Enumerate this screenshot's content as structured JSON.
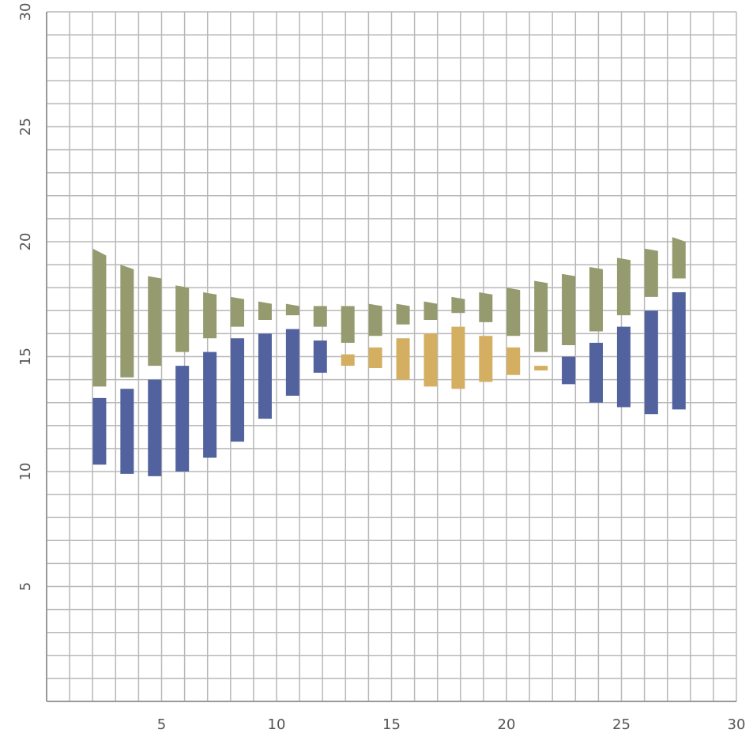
{
  "chart_data": {
    "type": "bar",
    "title": "",
    "xlabel": "",
    "ylabel": "",
    "xlim": [
      0,
      30
    ],
    "ylim": [
      0,
      30
    ],
    "grid": true,
    "x_ticks": [
      5,
      10,
      15,
      20,
      25,
      30
    ],
    "y_ticks": [
      5,
      10,
      15,
      20,
      25,
      30
    ],
    "colors": {
      "green": "#959B6F",
      "blue": "#52629E",
      "gold": "#D4AE61",
      "grid": "#b8b8b8"
    },
    "x": [
      2.3,
      3.5,
      4.7,
      5.9,
      7.1,
      8.3,
      9.5,
      10.7,
      11.9,
      13.1,
      14.3,
      15.5,
      16.7,
      17.9,
      19.1,
      20.3,
      21.5,
      22.7,
      23.9,
      25.1,
      26.3,
      27.5
    ],
    "series": [
      {
        "color": "green",
        "ranges": [
          [
            13.7,
            19.4,
            19.7
          ],
          [
            14.1,
            18.8,
            19.0
          ],
          [
            14.6,
            18.4,
            18.5
          ],
          [
            15.2,
            18.0,
            18.1
          ],
          [
            15.8,
            17.7,
            17.8
          ],
          [
            16.3,
            17.5,
            17.6
          ],
          [
            16.6,
            17.3,
            17.4
          ],
          [
            16.8,
            17.2,
            17.3
          ],
          [
            16.3,
            17.2,
            17.2
          ],
          [
            15.6,
            17.2,
            17.2
          ],
          [
            15.9,
            17.2,
            17.3
          ],
          [
            16.4,
            17.2,
            17.3
          ],
          [
            16.6,
            17.3,
            17.4
          ],
          [
            16.9,
            17.5,
            17.6
          ],
          [
            16.5,
            17.7,
            17.8
          ],
          [
            15.9,
            17.9,
            18.0
          ],
          [
            15.2,
            18.2,
            18.3
          ],
          [
            15.5,
            18.5,
            18.6
          ],
          [
            16.1,
            18.8,
            18.9
          ],
          [
            16.8,
            19.2,
            19.3
          ],
          [
            17.6,
            19.6,
            19.7
          ],
          [
            18.4,
            20.0,
            20.2
          ]
        ]
      },
      {
        "color": "blue",
        "ranges": [
          [
            10.3,
            13.2
          ],
          [
            9.9,
            13.6
          ],
          [
            9.8,
            14.0
          ],
          [
            10.0,
            14.6
          ],
          [
            10.6,
            15.2
          ],
          [
            11.3,
            15.8
          ],
          [
            12.3,
            16.0
          ],
          [
            13.3,
            16.2
          ],
          [
            14.3,
            15.7
          ],
          null,
          null,
          null,
          null,
          null,
          null,
          null,
          null,
          [
            13.8,
            15.0
          ],
          [
            13.0,
            15.6
          ],
          [
            12.8,
            16.3
          ],
          [
            12.5,
            17.0
          ],
          [
            12.7,
            17.8
          ]
        ]
      },
      {
        "color": "gold",
        "ranges": [
          null,
          null,
          null,
          null,
          null,
          null,
          null,
          null,
          null,
          [
            14.6,
            15.1
          ],
          [
            14.5,
            15.4
          ],
          [
            14.0,
            15.8
          ],
          [
            13.7,
            16.0
          ],
          [
            13.6,
            16.3
          ],
          [
            13.9,
            15.9
          ],
          [
            14.2,
            15.4
          ],
          [
            14.4,
            14.6
          ],
          null,
          null,
          null,
          null,
          null
        ]
      }
    ]
  }
}
